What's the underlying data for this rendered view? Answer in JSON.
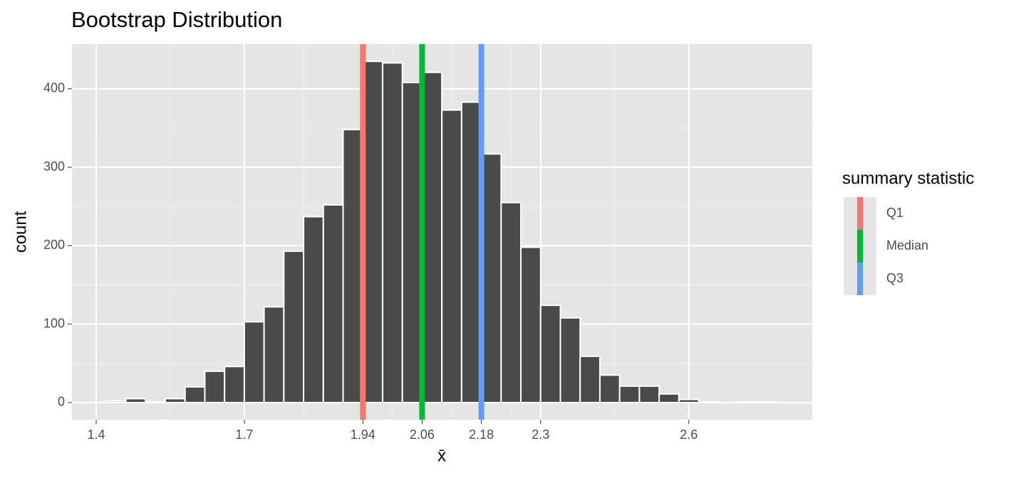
{
  "chart_data": {
    "type": "histogram",
    "title": "Bootstrap Distribution",
    "x_label": "x̄",
    "y_label": "count",
    "bins": [
      1.42,
      1.46,
      1.5,
      1.54,
      1.58,
      1.62,
      1.66,
      1.7,
      1.74,
      1.78,
      1.82,
      1.86,
      1.9,
      1.94,
      1.98,
      2.02,
      2.06,
      2.1,
      2.14,
      2.18,
      2.22,
      2.26,
      2.3,
      2.34,
      2.38,
      2.42,
      2.46,
      2.5,
      2.54,
      2.58,
      2.62,
      2.66,
      2.7,
      2.74,
      2.78
    ],
    "values": [
      2,
      5,
      1,
      5,
      20,
      40,
      46,
      103,
      122,
      193,
      237,
      252,
      348,
      435,
      433,
      408,
      421,
      373,
      383,
      317,
      255,
      198,
      124,
      108,
      59,
      35,
      21,
      21,
      11,
      4,
      1,
      0,
      1,
      1
    ],
    "color": "#4a4a4a",
    "xlim": [
      1.351,
      2.85
    ],
    "xticks": [
      1.4,
      1.7,
      1.94,
      2.06,
      2.18,
      2.3,
      2.6
    ],
    "ylim": [
      -21.8,
      457
    ],
    "yticks": [
      0,
      100,
      200,
      300,
      400
    ],
    "grid": true,
    "legend_title": "summary statistic",
    "vlines": [
      {
        "name": "Q1",
        "value": 1.94,
        "color": "#F8766D"
      },
      {
        "name": "Median",
        "value": 2.06,
        "color": "#00BA38"
      },
      {
        "name": "Q3",
        "value": 2.18,
        "color": "#619CFF"
      }
    ]
  }
}
